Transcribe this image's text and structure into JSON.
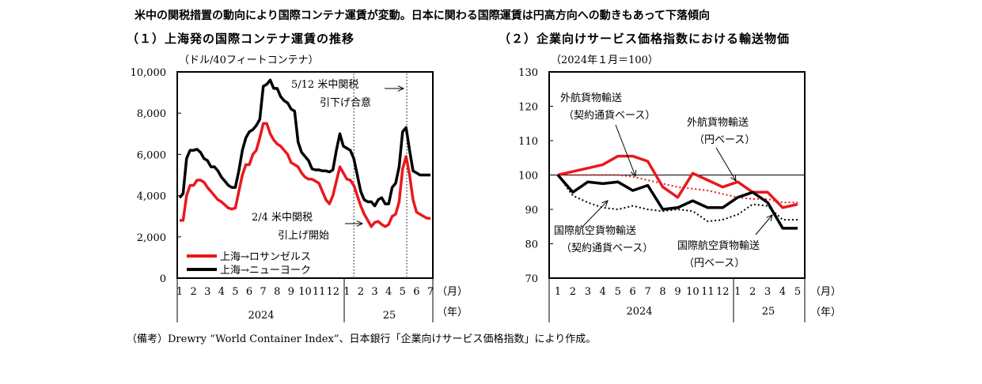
{
  "headline": "米中の関税措置の動向により国際コンテナ運賃が変動。日本に関わる国際運賃は円高方向への動きもあって下落傾向",
  "note": "（備考）Drewry “World Container Index”、日本銀行「企業向けサービス価格指数」により作成。",
  "colors": {
    "red": "#e8191e",
    "black": "#000000"
  },
  "chart_data": [
    {
      "type": "line",
      "title": "（１）上海発の国際コンテナ運賃の推移",
      "ylabel": "（ドル/40フィートコンテナ）",
      "ylim": [
        0,
        10000
      ],
      "yticks": [
        "10,000",
        "8,000",
        "6,000",
        "4,000",
        "2,000",
        "0"
      ],
      "ytick_values": [
        10000,
        8000,
        6000,
        4000,
        2000,
        0
      ],
      "xticks": [
        "1",
        "2",
        "3",
        "4",
        "5",
        "6",
        "7",
        "8",
        "9",
        "10",
        "11",
        "12",
        "1",
        "2",
        "3",
        "4",
        "5",
        "6",
        "7"
      ],
      "xunit": "（月）",
      "yunit": "（年）",
      "years": [
        "2024",
        "25"
      ],
      "x_range": [
        1,
        19
      ],
      "legend_position": "bottom-left",
      "series": [
        {
          "name": "上海→ロサンゼルス",
          "color": "#e8191e",
          "x": [
            1.0,
            1.25,
            1.5,
            1.75,
            2.0,
            2.25,
            2.5,
            2.75,
            3.0,
            3.25,
            3.5,
            3.75,
            4.0,
            4.25,
            4.5,
            4.75,
            5.0,
            5.25,
            5.5,
            5.75,
            6.0,
            6.25,
            6.5,
            6.75,
            7.0,
            7.25,
            7.5,
            7.75,
            8.0,
            8.25,
            8.5,
            8.75,
            9.0,
            9.25,
            9.5,
            9.75,
            10.0,
            10.25,
            10.5,
            10.75,
            11.0,
            11.25,
            11.5,
            11.75,
            12.0,
            12.25,
            12.5,
            12.75,
            13.0,
            13.25,
            13.5,
            13.75,
            14.0,
            14.25,
            14.5,
            14.75,
            15.0,
            15.25,
            15.5,
            15.75,
            16.0,
            16.25,
            16.5,
            16.75,
            17.0,
            17.25,
            17.5,
            17.75,
            18.0,
            18.25,
            18.5,
            18.75,
            19.0
          ],
          "values": [
            2800,
            2800,
            4000,
            4500,
            4500,
            4750,
            4750,
            4650,
            4400,
            4200,
            4000,
            3800,
            3700,
            3550,
            3400,
            3350,
            3400,
            4200,
            5000,
            5500,
            5500,
            6000,
            6200,
            6800,
            7500,
            7500,
            7000,
            6700,
            6500,
            6400,
            6200,
            6000,
            5600,
            5500,
            5400,
            5100,
            4900,
            4800,
            4800,
            4700,
            4600,
            4200,
            3800,
            3600,
            4000,
            4700,
            5400,
            5100,
            4800,
            4750,
            4500,
            4000,
            3500,
            3100,
            2800,
            2500,
            2700,
            2750,
            2600,
            2500,
            2600,
            3000,
            3100,
            3700,
            5300,
            5900,
            5000,
            3800,
            3200,
            3100,
            3000,
            2900,
            2900
          ]
        },
        {
          "name": "上海→ニューヨーク",
          "color": "#000000",
          "x": [
            1.0,
            1.25,
            1.5,
            1.75,
            2.0,
            2.25,
            2.5,
            2.75,
            3.0,
            3.25,
            3.5,
            3.75,
            4.0,
            4.25,
            4.5,
            4.75,
            5.0,
            5.25,
            5.5,
            5.75,
            6.0,
            6.25,
            6.5,
            6.75,
            7.0,
            7.25,
            7.5,
            7.75,
            8.0,
            8.25,
            8.5,
            8.75,
            9.0,
            9.25,
            9.5,
            9.75,
            10.0,
            10.25,
            10.5,
            10.75,
            11.0,
            11.25,
            11.5,
            11.75,
            12.0,
            12.25,
            12.5,
            12.75,
            13.0,
            13.25,
            13.5,
            13.75,
            14.0,
            14.25,
            14.5,
            14.75,
            15.0,
            15.25,
            15.5,
            15.75,
            16.0,
            16.25,
            16.5,
            16.75,
            17.0,
            17.25,
            17.5,
            17.75,
            18.0,
            18.25,
            18.5,
            18.75,
            19.0
          ],
          "values": [
            3900,
            4100,
            5800,
            6200,
            6200,
            6250,
            6100,
            5800,
            5700,
            5400,
            5400,
            5200,
            4900,
            4700,
            4500,
            4400,
            4400,
            5200,
            6200,
            6800,
            7100,
            7200,
            7400,
            7700,
            9300,
            9400,
            9600,
            9200,
            9200,
            8800,
            8600,
            8500,
            8200,
            8100,
            6600,
            6100,
            5900,
            5700,
            5300,
            5250,
            5250,
            5200,
            5200,
            5150,
            5250,
            6200,
            7000,
            6400,
            6300,
            6200,
            5800,
            5000,
            4200,
            3800,
            3700,
            3700,
            3500,
            3800,
            3900,
            3600,
            3600,
            4400,
            4600,
            5400,
            7100,
            7300,
            6200,
            5200,
            5100,
            5000,
            5000,
            5000,
            5000
          ]
        }
      ],
      "annotations": [
        {
          "line1": "5/12  米中関税",
          "line2": "引下げ合意"
        },
        {
          "line1": "2/4  米中関税",
          "line2": "引上げ開始"
        }
      ]
    },
    {
      "type": "line",
      "title": "（２）企業向けサービス価格指数における輸送物価",
      "ylabel": "（2024年１月＝100）",
      "ylim": [
        70,
        130
      ],
      "yticks": [
        "130",
        "120",
        "110",
        "100",
        "90",
        "80",
        "70"
      ],
      "ytick_values": [
        130,
        120,
        110,
        100,
        90,
        80,
        70
      ],
      "xticks": [
        "1",
        "2",
        "3",
        "4",
        "5",
        "6",
        "7",
        "8",
        "9",
        "10",
        "11",
        "12",
        "1",
        "2",
        "3",
        "4",
        "5"
      ],
      "xunit": "（月）",
      "yunit": "（年）",
      "years": [
        "2024",
        "25"
      ],
      "x_range": [
        1,
        17
      ],
      "series": [
        {
          "name": "外航貨物輸送（円ベース）",
          "color": "#e8191e",
          "style": "solid",
          "x": [
            1,
            2,
            3,
            4,
            5,
            6,
            7,
            8,
            9,
            10,
            11,
            12,
            13,
            14,
            15,
            16,
            17
          ],
          "values": [
            100,
            101,
            102,
            103,
            105.5,
            105.5,
            104,
            96.5,
            93.5,
            100.5,
            98.5,
            96.5,
            98,
            95,
            95,
            90.5,
            91.5
          ]
        },
        {
          "name": "外航貨物輸送（契約通貨ベース）",
          "color": "#e8191e",
          "style": "dotted",
          "x": [
            1,
            2,
            3,
            4,
            5,
            6,
            7,
            8,
            9,
            10,
            11,
            12,
            13,
            14,
            15,
            16,
            17
          ],
          "values": [
            100,
            100,
            100,
            100,
            100,
            99.5,
            98.5,
            97.5,
            96.5,
            96,
            95.5,
            94.5,
            93.5,
            93,
            93,
            92,
            92
          ]
        },
        {
          "name": "国際航空貨物輸送（円ベース）",
          "color": "#000000",
          "style": "solid",
          "x": [
            1,
            2,
            3,
            4,
            5,
            6,
            7,
            8,
            9,
            10,
            11,
            12,
            13,
            14,
            15,
            16,
            17
          ],
          "values": [
            100,
            95,
            98,
            97.5,
            98,
            95.5,
            97,
            90,
            90.5,
            92.5,
            90.5,
            90.5,
            93.5,
            95,
            92,
            84.5,
            84.5
          ]
        },
        {
          "name": "国際航空貨物輸送（契約通貨ベース）",
          "color": "#000000",
          "style": "dotted",
          "x": [
            1,
            2,
            3,
            4,
            5,
            6,
            7,
            8,
            9,
            10,
            11,
            12,
            13,
            14,
            15,
            16,
            17
          ],
          "values": [
            100,
            94,
            92,
            90.5,
            90,
            91,
            90,
            89.5,
            90,
            89.5,
            86.5,
            87,
            88.5,
            91.5,
            91,
            87,
            87
          ]
        }
      ],
      "labels": [
        {
          "line1": "外航貨物輸送",
          "line2": "（契約通貨ベース）"
        },
        {
          "line1": "外航貨物輸送",
          "line2": "（円ベース）"
        },
        {
          "line1": "国際航空貨物輸送",
          "line2": "（契約通貨ベース）"
        },
        {
          "line1": "国際航空貨物輸送",
          "line2": "（円ベース）"
        }
      ]
    }
  ]
}
